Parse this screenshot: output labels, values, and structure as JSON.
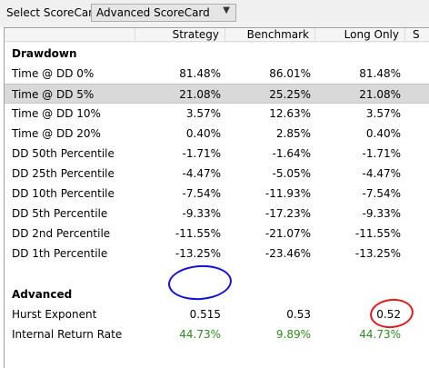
{
  "toolbar": {
    "label": "Select ScoreCard:",
    "selected": "Advanced ScoreCard",
    "arrow_icon": "chevron-down-icon"
  },
  "grid": {
    "headers": [
      "",
      "Strategy",
      "Benchmark",
      "Long Only",
      "S"
    ],
    "sections": [
      {
        "title": "Drawdown",
        "rows": [
          {
            "label": "Time @ DD 0%",
            "strategy": "81.48%",
            "benchmark": "86.01%",
            "long_only": "81.48%"
          },
          {
            "label": "Time @ DD 5%",
            "strategy": "21.08%",
            "benchmark": "25.25%",
            "long_only": "21.08%"
          },
          {
            "label": "Time @ DD 10%",
            "strategy": "3.57%",
            "benchmark": "12.63%",
            "long_only": "3.57%"
          },
          {
            "label": "Time @ DD 20%",
            "strategy": "0.40%",
            "benchmark": "2.85%",
            "long_only": "0.40%"
          },
          {
            "label": "DD 50th Percentile",
            "strategy": "-1.71%",
            "benchmark": "-1.64%",
            "long_only": "-1.71%"
          },
          {
            "label": "DD 25th Percentile",
            "strategy": "-4.47%",
            "benchmark": "-5.05%",
            "long_only": "-4.47%"
          },
          {
            "label": "DD 10th Percentile",
            "strategy": "-7.54%",
            "benchmark": "-11.93%",
            "long_only": "-7.54%"
          },
          {
            "label": "DD 5th Percentile",
            "strategy": "-9.33%",
            "benchmark": "-17.23%",
            "long_only": "-9.33%"
          },
          {
            "label": "DD 2nd Percentile",
            "strategy": "-11.55%",
            "benchmark": "-21.07%",
            "long_only": "-11.55%"
          },
          {
            "label": "DD 1th Percentile",
            "strategy": "-13.25%",
            "benchmark": "-23.46%",
            "long_only": "-13.25%"
          }
        ]
      },
      {
        "title": "Advanced",
        "rows": [
          {
            "label": "Hurst Exponent",
            "strategy": "0.515",
            "benchmark": "0.53",
            "long_only": "0.52"
          },
          {
            "label": "Internal Return Rate",
            "strategy": "44.73%",
            "benchmark": "9.89%",
            "long_only": "44.73%"
          }
        ]
      }
    ]
  },
  "colors": {
    "positive_value": "#2e8b1f",
    "selected_row": "#d9d9d9",
    "annotation_blue": "#1212d6",
    "annotation_red": "#e11b1b"
  }
}
